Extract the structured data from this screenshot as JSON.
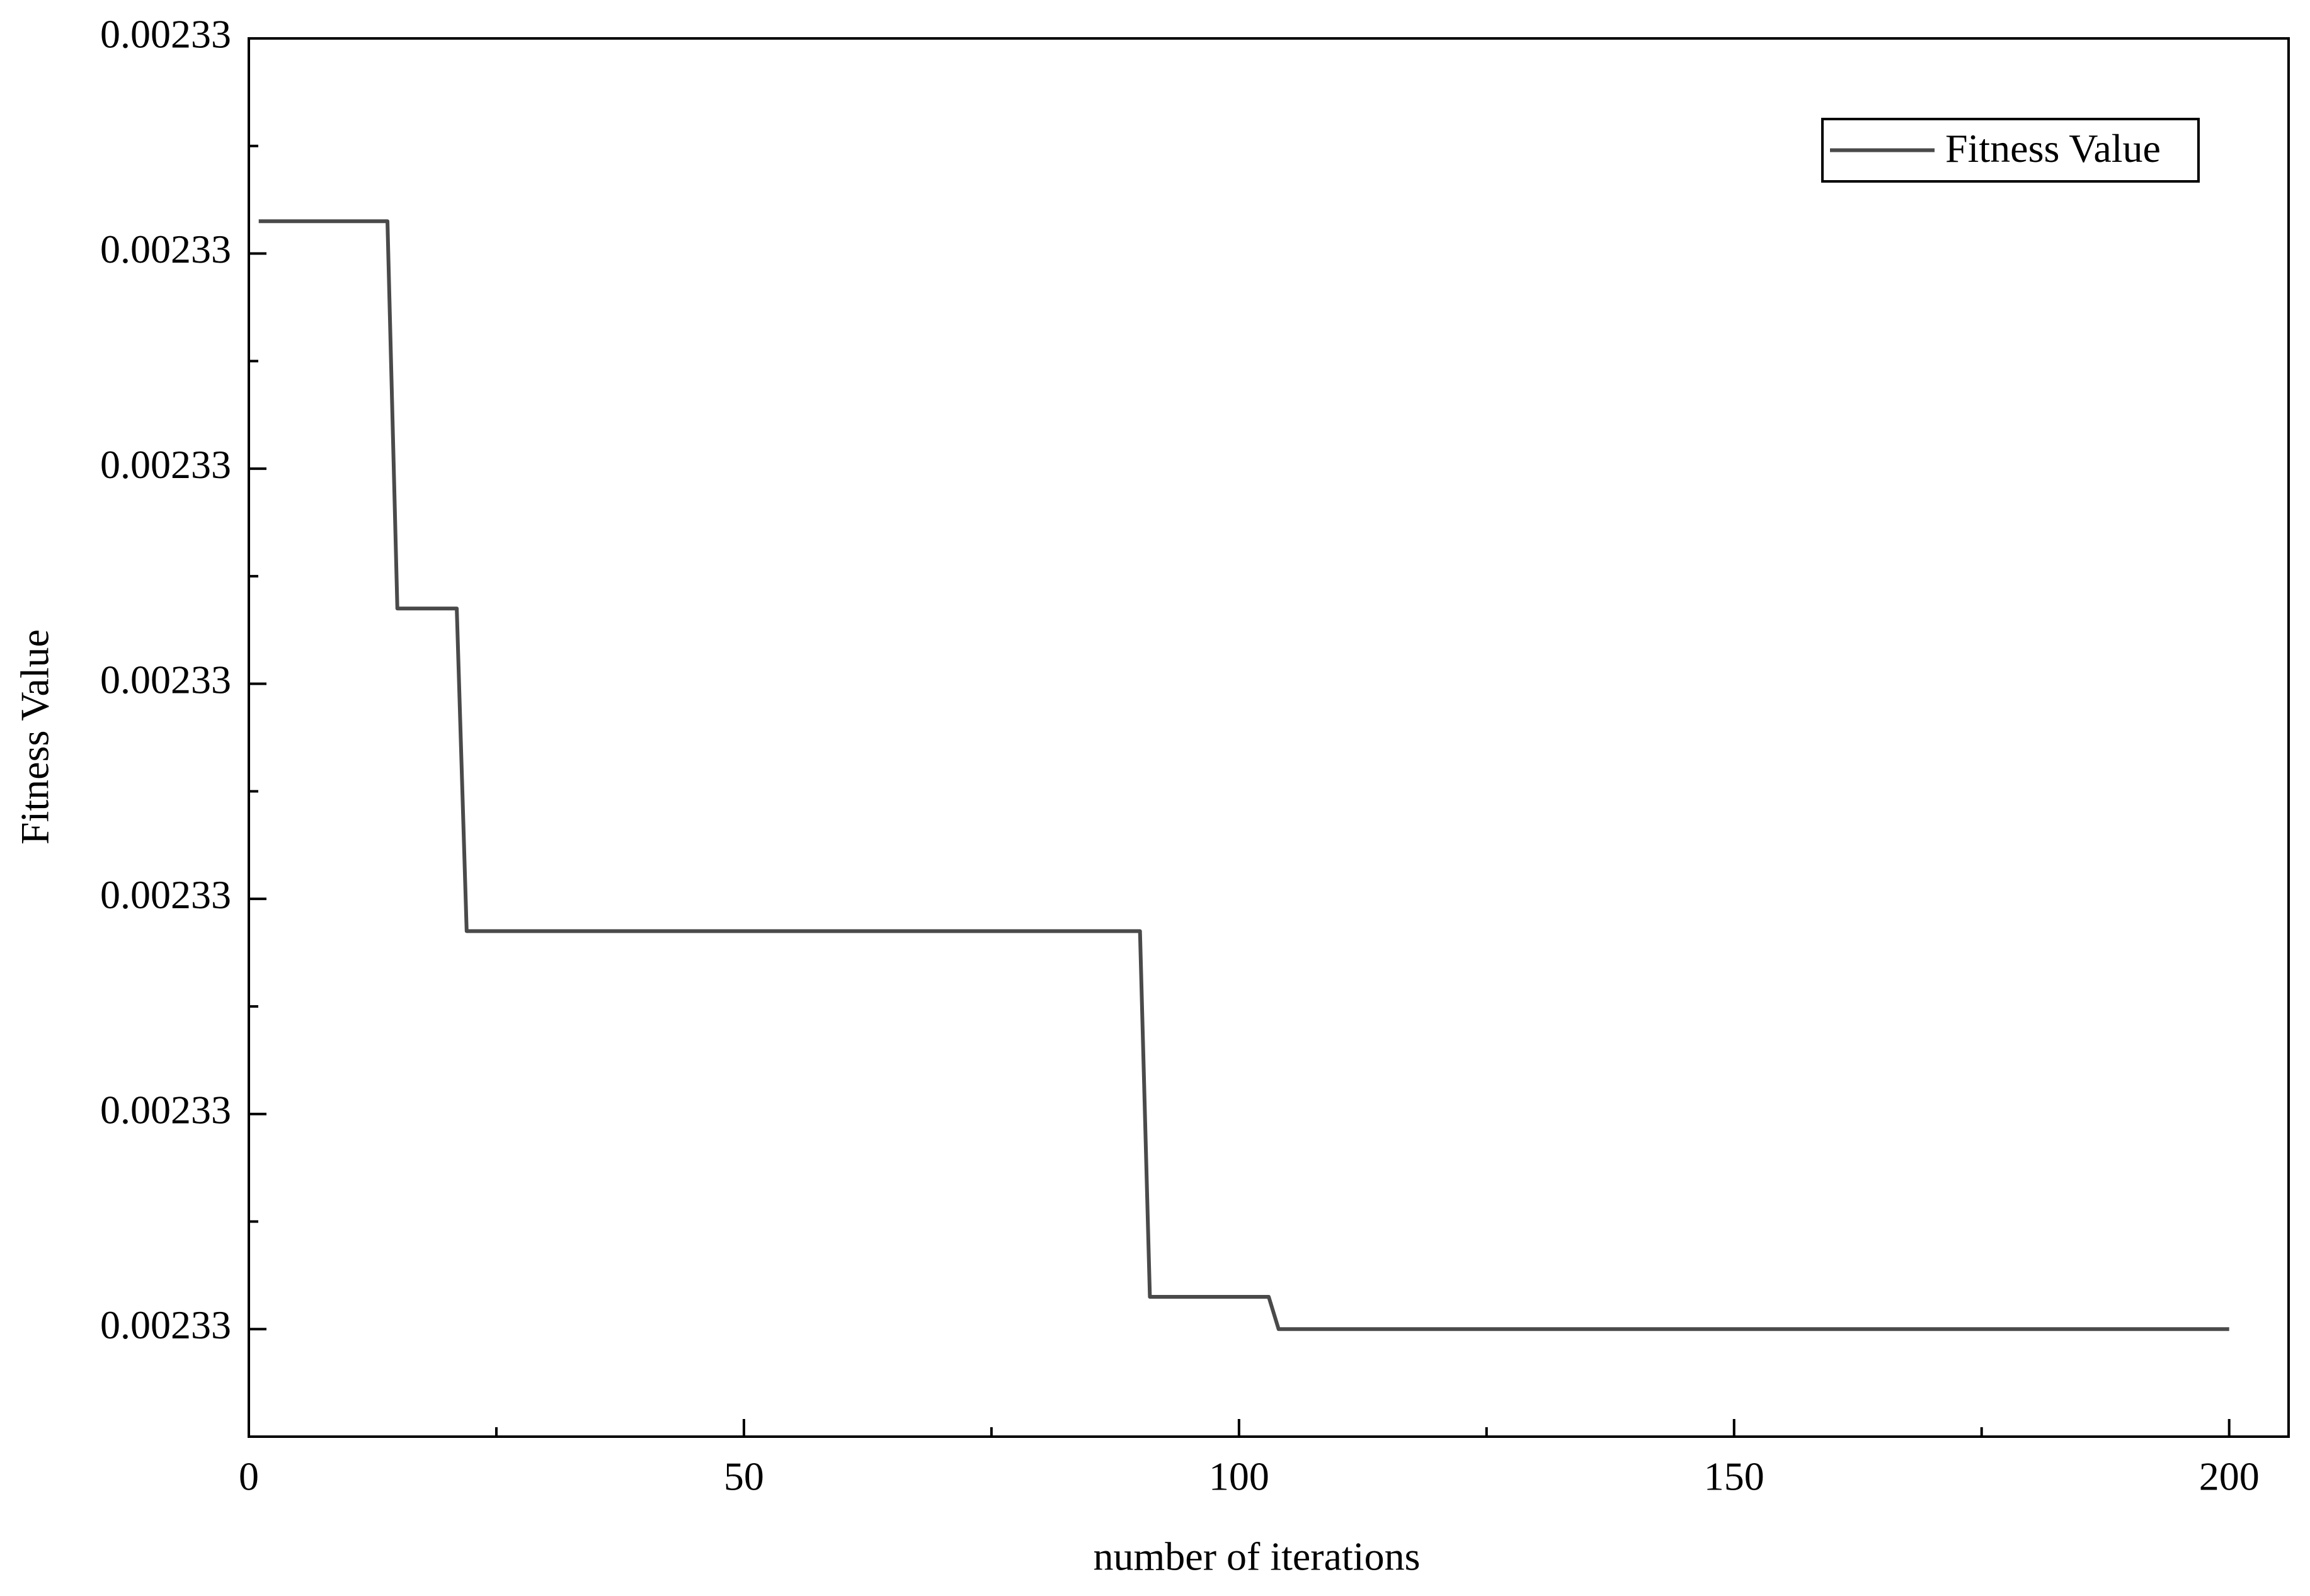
{
  "chart_data": {
    "type": "line",
    "x_label": "number of iterations",
    "y_label": "Fitness Value",
    "x": [
      1,
      14,
      15,
      21,
      22,
      90,
      91,
      103,
      104,
      200
    ],
    "series": [
      {
        "name": "Fitness Value",
        "color": "#4a4a4a",
        "values": [
          0.00233103,
          0.00233103,
          0.00233067,
          0.00233067,
          0.00233037,
          0.00233037,
          0.00233003,
          0.00233003,
          0.00233,
          0.00233
        ]
      }
    ],
    "xlim": [
      0,
      206
    ],
    "xticks": [
      0,
      50,
      100,
      150,
      200
    ],
    "x_minor_ticks": [
      25,
      75,
      125,
      175
    ],
    "ylim": [
      0.0023299,
      0.0023312
    ],
    "yticks": [
      {
        "value": 0.00233,
        "label": "0.00233"
      },
      {
        "value": 0.0023302,
        "label": "0.00233"
      },
      {
        "value": 0.0023304,
        "label": "0.00233"
      },
      {
        "value": 0.0023306,
        "label": "0.00233"
      },
      {
        "value": 0.0023308,
        "label": "0.00233"
      },
      {
        "value": 0.002331,
        "label": "0.00233"
      },
      {
        "value": 0.0023312,
        "label": "0.00233"
      }
    ],
    "y_minor_ticks": [
      0.0023301,
      0.0023303,
      0.0023305,
      0.0023307,
      0.0023309,
      0.0023311
    ],
    "legend": "top-right",
    "grid": false
  }
}
